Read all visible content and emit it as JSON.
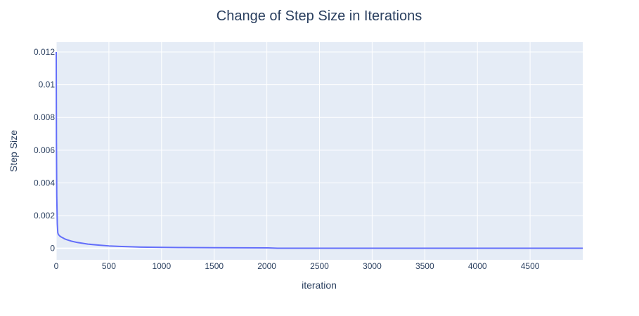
{
  "chart_data": {
    "type": "line",
    "title": "Change of Step Size in Iterations",
    "xlabel": "iteration",
    "ylabel": "Step Size",
    "xlim": [
      0,
      5000
    ],
    "ylim": [
      -0.0007,
      0.0126
    ],
    "x_ticks": [
      0,
      500,
      1000,
      1500,
      2000,
      2500,
      3000,
      3500,
      4000,
      4500
    ],
    "x_tick_labels": [
      "0",
      "500",
      "1000",
      "1500",
      "2000",
      "2500",
      "3000",
      "3500",
      "4000",
      "4500"
    ],
    "y_ticks": [
      0,
      0.002,
      0.004,
      0.006,
      0.008,
      0.01,
      0.012
    ],
    "y_tick_labels": [
      "0",
      "0.002",
      "0.004",
      "0.006",
      "0.008",
      "0.01",
      "0.012"
    ],
    "grid": true,
    "colors": {
      "plot_bg": "#e5ecf6",
      "grid": "#ffffff",
      "line": "#636efa",
      "text": "#2a3f5f"
    },
    "series": [
      {
        "x": [
          0,
          2,
          5,
          10,
          15,
          20,
          30,
          40,
          60,
          80,
          100,
          150,
          200,
          300,
          400,
          500,
          600,
          800,
          1000,
          1200,
          1500,
          2000,
          2100,
          2500,
          3000,
          3500,
          4000,
          4500,
          5000
        ],
        "values": [
          0.012,
          0.0065,
          0.0032,
          0.0015,
          0.00095,
          0.00085,
          0.00078,
          0.00072,
          0.00065,
          0.00058,
          0.00053,
          0.00043,
          0.00036,
          0.00026,
          0.0002,
          0.00015,
          0.00012,
          8e-05,
          6e-05,
          5e-05,
          4e-05,
          3e-05,
          1e-05,
          1e-05,
          1e-05,
          1e-05,
          1e-05,
          1e-05,
          1e-05
        ]
      }
    ]
  }
}
